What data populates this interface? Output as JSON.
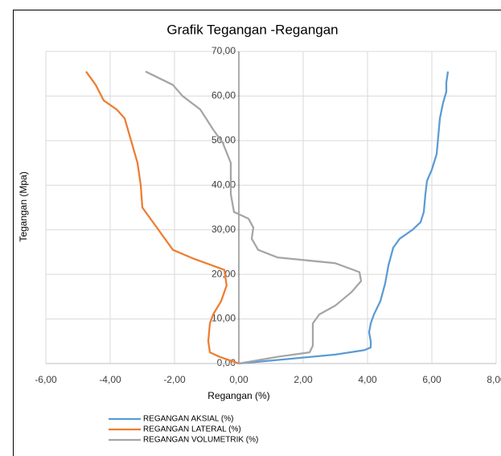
{
  "chart_data": {
    "type": "line",
    "title": "Grafik Tegangan -Regangan",
    "x_label": "Regangan (%)",
    "y_label": "Tegangan (Mpa)",
    "xlim": [
      -6,
      8
    ],
    "ylim": [
      0,
      70
    ],
    "xticks": [
      {
        "value": -6,
        "label": "-6,00"
      },
      {
        "value": -4,
        "label": "-4,00"
      },
      {
        "value": -2,
        "label": "-2,00"
      },
      {
        "value": 0,
        "label": "0,00"
      },
      {
        "value": 2,
        "label": "2,00"
      },
      {
        "value": 4,
        "label": "4,00"
      },
      {
        "value": 6,
        "label": "6,00"
      },
      {
        "value": 8,
        "label": "8,00"
      }
    ],
    "yticks": [
      {
        "value": 0,
        "label": "0,00"
      },
      {
        "value": 10,
        "label": "10,00"
      },
      {
        "value": 20,
        "label": "20,00"
      },
      {
        "value": 30,
        "label": "30,00"
      },
      {
        "value": 40,
        "label": "40,00"
      },
      {
        "value": 50,
        "label": "50,00"
      },
      {
        "value": 60,
        "label": "60,00"
      },
      {
        "value": 70,
        "label": "70,00"
      }
    ],
    "grid": true,
    "legend": "bottom",
    "series": [
      {
        "name": "REGANGAN AKSIAL (%)",
        "color": "#5b9bd5",
        "x": [
          0,
          1.5,
          3.0,
          3.9,
          4.1,
          4.1,
          4.05,
          4.1,
          4.2,
          4.4,
          4.55,
          4.65,
          4.8,
          5.0,
          5.4,
          5.65,
          5.75,
          5.8,
          5.85,
          6.0,
          6.15,
          6.2,
          6.25,
          6.35,
          6.45,
          6.45,
          6.5
        ],
        "values": [
          0,
          1,
          2,
          3,
          3.6,
          5,
          7,
          9,
          11,
          14,
          18,
          22,
          26,
          28,
          30,
          31.7,
          34,
          38,
          41,
          43.5,
          47,
          51,
          55,
          58.5,
          61,
          63,
          65.5
        ]
      },
      {
        "name": "REGANGAN LATERAL (%)",
        "color": "#ed7d31",
        "x": [
          0,
          -0.6,
          -0.9,
          -0.95,
          -0.9,
          -0.8,
          -0.55,
          -0.38,
          -0.45,
          -1.4,
          -2.05,
          -2.35,
          -2.7,
          -3.0,
          -3.05,
          -3.15,
          -3.35,
          -3.55,
          -3.8,
          -4.2,
          -4.45,
          -4.75
        ],
        "values": [
          0,
          1.5,
          2.5,
          5,
          9,
          11,
          14,
          17.5,
          21,
          23.5,
          25.5,
          28.5,
          32,
          35,
          40,
          45,
          50,
          55,
          57,
          59,
          62.5,
          65.5
        ]
      },
      {
        "name": "REGANGAN VOLUMETRIK (%)",
        "color": "#a5a5a5",
        "x": [
          0,
          1.2,
          2.2,
          2.3,
          2.3,
          2.5,
          3.0,
          3.5,
          3.8,
          3.75,
          3.0,
          1.2,
          0.6,
          0.4,
          0.45,
          0.3,
          -0.15,
          -0.25,
          -0.25,
          -0.5,
          -0.8,
          -1.2,
          -1.75,
          -2.05,
          -2.9
        ],
        "values": [
          0,
          1.5,
          2.5,
          4,
          9,
          11,
          13,
          16,
          18.5,
          20.5,
          22.5,
          23.8,
          25.5,
          28,
          30.5,
          32.5,
          34,
          38,
          45,
          49.5,
          52.5,
          57,
          60,
          62.5,
          65.5
        ]
      }
    ]
  }
}
